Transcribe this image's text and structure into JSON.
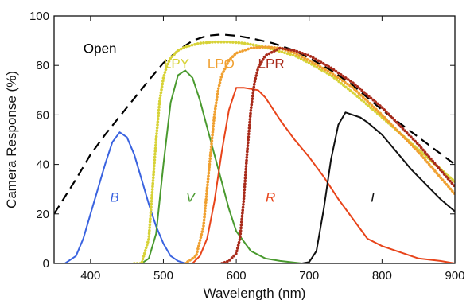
{
  "chart_data": {
    "type": "line",
    "xlabel": "Wavelength (nm)",
    "ylabel": "Camera Response (%)",
    "xlim": [
      350,
      900
    ],
    "ylim": [
      0,
      100
    ],
    "xticks": [
      400,
      500,
      600,
      700,
      800,
      900
    ],
    "yticks": [
      0,
      20,
      40,
      60,
      80,
      100
    ],
    "grid": false,
    "series": [
      {
        "name": "Open",
        "color": "#000000",
        "style": "dashed",
        "x": [
          350,
          380,
          400,
          420,
          450,
          480,
          500,
          520,
          540,
          560,
          580,
          600,
          620,
          650,
          680,
          700,
          730,
          760,
          800,
          850,
          900
        ],
        "y": [
          20,
          34,
          44,
          52,
          63,
          74,
          81,
          86,
          90,
          92,
          92.5,
          92,
          91,
          89,
          86,
          83,
          78,
          72,
          62,
          51,
          40
        ]
      },
      {
        "name": "B",
        "color": "#3a63e0",
        "style": "solid",
        "x": [
          365,
          380,
          390,
          400,
          410,
          420,
          430,
          440,
          450,
          460,
          470,
          480,
          490,
          500,
          510,
          520,
          530
        ],
        "y": [
          0,
          3,
          10,
          20,
          30,
          40,
          49,
          53,
          51,
          44,
          34,
          24,
          15,
          8,
          3,
          1,
          0
        ]
      },
      {
        "name": "V",
        "color": "#4a9a2f",
        "style": "solid",
        "x": [
          470,
          480,
          490,
          500,
          510,
          520,
          530,
          540,
          550,
          560,
          570,
          580,
          590,
          600,
          620,
          640,
          660,
          690
        ],
        "y": [
          0,
          2,
          12,
          40,
          65,
          76,
          78,
          75,
          66,
          55,
          44,
          33,
          22,
          13,
          5,
          2,
          1,
          0
        ]
      },
      {
        "name": "R",
        "color": "#e8441a",
        "style": "solid",
        "x": [
          540,
          550,
          560,
          570,
          580,
          590,
          600,
          610,
          620,
          630,
          640,
          660,
          680,
          700,
          720,
          740,
          760,
          780,
          800,
          820,
          850,
          880,
          900
        ],
        "y": [
          0,
          3,
          10,
          25,
          45,
          62,
          71,
          71,
          70.5,
          70,
          67,
          58,
          50,
          43,
          35,
          26,
          18,
          10,
          7,
          5,
          2,
          1,
          0
        ]
      },
      {
        "name": "I",
        "color": "#111111",
        "style": "solid",
        "x": [
          690,
          700,
          710,
          720,
          730,
          740,
          750,
          760,
          770,
          780,
          800,
          820,
          840,
          860,
          880,
          900
        ],
        "y": [
          0,
          0.5,
          5,
          22,
          42,
          56,
          61,
          60,
          59,
          57,
          52,
          45,
          38,
          32,
          26,
          21
        ]
      },
      {
        "name": "LPY",
        "color": "#d7d237",
        "style": "dotted",
        "x": [
          460,
          470,
          480,
          485,
          490,
          495,
          500,
          505,
          510,
          520,
          530,
          550,
          570,
          590,
          610,
          630,
          650,
          680,
          700,
          730,
          760,
          800,
          850,
          900
        ],
        "y": [
          0,
          0,
          10,
          30,
          50,
          66,
          75,
          80,
          83,
          86,
          87.5,
          89,
          89.5,
          89.5,
          89,
          88,
          86.5,
          84,
          81,
          76,
          69,
          59,
          46,
          33
        ]
      },
      {
        "name": "LPO",
        "color": "#f0a030",
        "style": "dotted",
        "x": [
          530,
          545,
          555,
          560,
          565,
          570,
          575,
          580,
          590,
          600,
          620,
          640,
          660,
          680,
          700,
          730,
          760,
          800,
          850,
          900
        ],
        "y": [
          0,
          3,
          15,
          30,
          45,
          60,
          70,
          76,
          82,
          85,
          87,
          87.5,
          87,
          85,
          82,
          77,
          71,
          60,
          45,
          28
        ]
      },
      {
        "name": "LPR",
        "color": "#a82a1a",
        "style": "dotted",
        "x": [
          580,
          590,
          600,
          605,
          610,
          615,
          620,
          625,
          630,
          640,
          660,
          680,
          700,
          730,
          760,
          800,
          850,
          900
        ],
        "y": [
          0,
          1,
          4,
          10,
          25,
          45,
          62,
          73,
          79,
          84,
          87,
          86,
          84,
          79,
          73,
          63,
          48,
          31
        ]
      }
    ],
    "annotations": [
      {
        "text": "Open",
        "x": 413,
        "y": 85,
        "color": "#000000",
        "italic": false
      },
      {
        "text": "LPY",
        "x": 518,
        "y": 79,
        "color": "#d7d237",
        "italic": false
      },
      {
        "text": "LPO",
        "x": 579,
        "y": 79,
        "color": "#f0a030",
        "italic": false
      },
      {
        "text": "LPR",
        "x": 648,
        "y": 79,
        "color": "#a82a1a",
        "italic": false
      },
      {
        "text": "B",
        "x": 433,
        "y": 25,
        "color": "#3a63e0",
        "italic": true
      },
      {
        "text": "V",
        "x": 537,
        "y": 25,
        "color": "#4a9a2f",
        "italic": true
      },
      {
        "text": "R",
        "x": 647,
        "y": 25,
        "color": "#e8441a",
        "italic": true
      },
      {
        "text": "I",
        "x": 787,
        "y": 25,
        "color": "#111111",
        "italic": true
      }
    ]
  }
}
